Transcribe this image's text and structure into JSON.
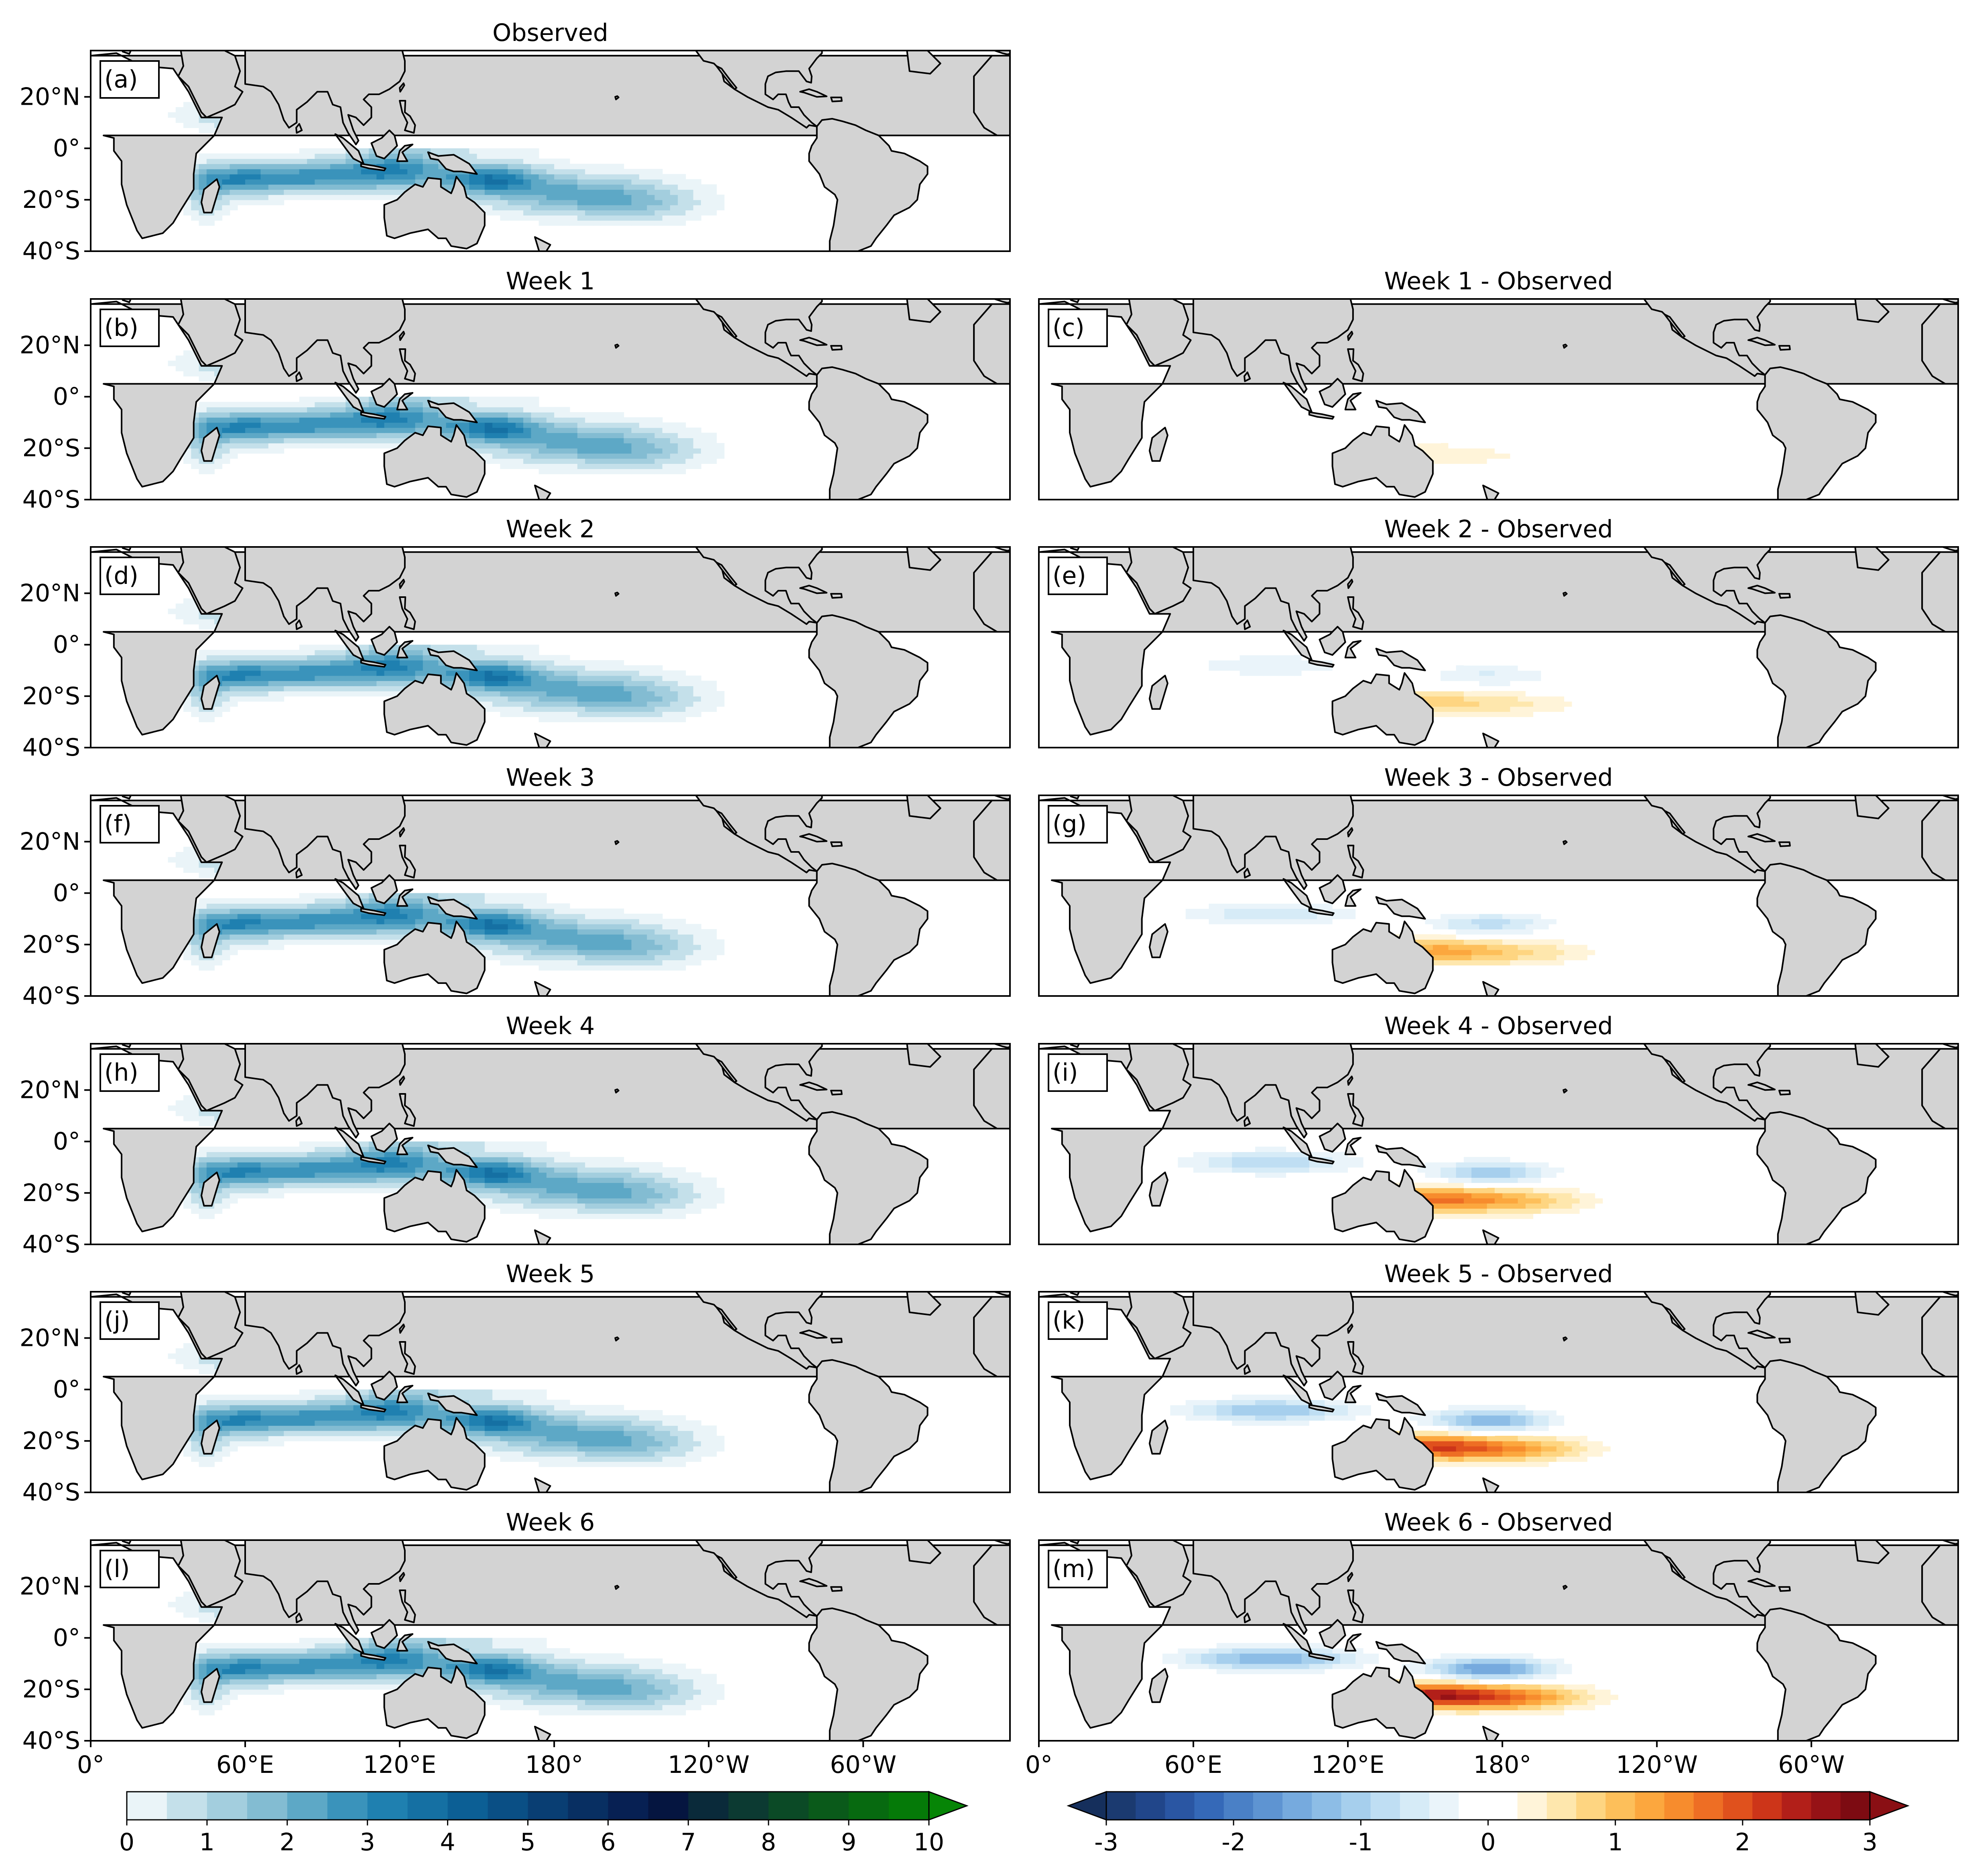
{
  "figure": {
    "colors": {
      "land": "#d3d3d3",
      "ocean": "#ffffff",
      "coast": "#000000"
    }
  },
  "chart_data": [
    {
      "type": "heatmap",
      "role": "climatology",
      "title": "Observed",
      "panel_label": "(a)",
      "lon_ticks": [
        "0°",
        "60°E",
        "120°E",
        "180°",
        "120°W",
        "60°W"
      ],
      "lat_ticks": [
        "20°N",
        "0°",
        "20°S",
        "40°S"
      ],
      "x_range": [
        0,
        357
      ],
      "ylim": [
        -40,
        38
      ],
      "show_x_ticks": false,
      "show_y_ticks": true
    },
    {
      "type": "heatmap",
      "role": "climatology",
      "title": "Week 1",
      "panel_label": "(b)",
      "lon_ticks": [
        "0°",
        "60°E",
        "120°E",
        "180°",
        "120°W",
        "60°W"
      ],
      "lat_ticks": [
        "20°N",
        "0°",
        "20°S",
        "40°S"
      ],
      "x_range": [
        0,
        357
      ],
      "ylim": [
        -40,
        38
      ],
      "show_x_ticks": false,
      "show_y_ticks": true
    },
    {
      "type": "heatmap",
      "role": "difference",
      "title": "Week 1 - Observed",
      "panel_label": "(c)",
      "lon_ticks": [
        "0°",
        "60°E",
        "120°E",
        "180°",
        "120°W",
        "60°W"
      ],
      "lat_ticks": [
        "20°N",
        "0°",
        "20°S",
        "40°S"
      ],
      "x_range": [
        0,
        357
      ],
      "ylim": [
        -40,
        38
      ],
      "show_x_ticks": false,
      "show_y_ticks": false
    },
    {
      "type": "heatmap",
      "role": "climatology",
      "title": "Week 2",
      "panel_label": "(d)",
      "lon_ticks": [
        "0°",
        "60°E",
        "120°E",
        "180°",
        "120°W",
        "60°W"
      ],
      "lat_ticks": [
        "20°N",
        "0°",
        "20°S",
        "40°S"
      ],
      "x_range": [
        0,
        357
      ],
      "ylim": [
        -40,
        38
      ],
      "show_x_ticks": false,
      "show_y_ticks": true
    },
    {
      "type": "heatmap",
      "role": "difference",
      "title": "Week 2 - Observed",
      "panel_label": "(e)",
      "lon_ticks": [
        "0°",
        "60°E",
        "120°E",
        "180°",
        "120°W",
        "60°W"
      ],
      "lat_ticks": [
        "20°N",
        "0°",
        "20°S",
        "40°S"
      ],
      "x_range": [
        0,
        357
      ],
      "ylim": [
        -40,
        38
      ],
      "show_x_ticks": false,
      "show_y_ticks": false
    },
    {
      "type": "heatmap",
      "role": "climatology",
      "title": "Week 3",
      "panel_label": "(f)",
      "lon_ticks": [
        "0°",
        "60°E",
        "120°E",
        "180°",
        "120°W",
        "60°W"
      ],
      "lat_ticks": [
        "20°N",
        "0°",
        "20°S",
        "40°S"
      ],
      "x_range": [
        0,
        357
      ],
      "ylim": [
        -40,
        38
      ],
      "show_x_ticks": false,
      "show_y_ticks": true
    },
    {
      "type": "heatmap",
      "role": "difference",
      "title": "Week 3 - Observed",
      "panel_label": "(g)",
      "lon_ticks": [
        "0°",
        "60°E",
        "120°E",
        "180°",
        "120°W",
        "60°W"
      ],
      "lat_ticks": [
        "20°N",
        "0°",
        "20°S",
        "40°S"
      ],
      "x_range": [
        0,
        357
      ],
      "ylim": [
        -40,
        38
      ],
      "show_x_ticks": false,
      "show_y_ticks": false
    },
    {
      "type": "heatmap",
      "role": "climatology",
      "title": "Week 4",
      "panel_label": "(h)",
      "lon_ticks": [
        "0°",
        "60°E",
        "120°E",
        "180°",
        "120°W",
        "60°W"
      ],
      "lat_ticks": [
        "20°N",
        "0°",
        "20°S",
        "40°S"
      ],
      "x_range": [
        0,
        357
      ],
      "ylim": [
        -40,
        38
      ],
      "show_x_ticks": false,
      "show_y_ticks": true
    },
    {
      "type": "heatmap",
      "role": "difference",
      "title": "Week 4 - Observed",
      "panel_label": "(i)",
      "lon_ticks": [
        "0°",
        "60°E",
        "120°E",
        "180°",
        "120°W",
        "60°W"
      ],
      "lat_ticks": [
        "20°N",
        "0°",
        "20°S",
        "40°S"
      ],
      "x_range": [
        0,
        357
      ],
      "ylim": [
        -40,
        38
      ],
      "show_x_ticks": false,
      "show_y_ticks": false
    },
    {
      "type": "heatmap",
      "role": "climatology",
      "title": "Week 5",
      "panel_label": "(j)",
      "lon_ticks": [
        "0°",
        "60°E",
        "120°E",
        "180°",
        "120°W",
        "60°W"
      ],
      "lat_ticks": [
        "20°N",
        "0°",
        "20°S",
        "40°S"
      ],
      "x_range": [
        0,
        357
      ],
      "ylim": [
        -40,
        38
      ],
      "show_x_ticks": false,
      "show_y_ticks": true
    },
    {
      "type": "heatmap",
      "role": "difference",
      "title": "Week 5 - Observed",
      "panel_label": "(k)",
      "lon_ticks": [
        "0°",
        "60°E",
        "120°E",
        "180°",
        "120°W",
        "60°W"
      ],
      "lat_ticks": [
        "20°N",
        "0°",
        "20°S",
        "40°S"
      ],
      "x_range": [
        0,
        357
      ],
      "ylim": [
        -40,
        38
      ],
      "show_x_ticks": false,
      "show_y_ticks": false
    },
    {
      "type": "heatmap",
      "role": "climatology",
      "title": "Week 6",
      "panel_label": "(l)",
      "lon_ticks": [
        "0°",
        "60°E",
        "120°E",
        "180°",
        "120°W",
        "60°W"
      ],
      "lat_ticks": [
        "20°N",
        "0°",
        "20°S",
        "40°S"
      ],
      "x_range": [
        0,
        357
      ],
      "ylim": [
        -40,
        38
      ],
      "show_x_ticks": true,
      "show_y_ticks": true
    },
    {
      "type": "heatmap",
      "role": "difference",
      "title": "Week 6 - Observed",
      "panel_label": "(m)",
      "lon_ticks": [
        "0°",
        "60°E",
        "120°E",
        "180°",
        "120°W",
        "60°W"
      ],
      "lat_ticks": [
        "20°N",
        "0°",
        "20°S",
        "40°S"
      ],
      "x_range": [
        0,
        357
      ],
      "ylim": [
        -40,
        38
      ],
      "show_x_ticks": true,
      "show_y_ticks": false
    }
  ],
  "colorbars": [
    {
      "name": "climatology",
      "range": [
        0,
        10
      ],
      "ticks": [
        "0",
        "1",
        "2",
        "3",
        "4",
        "5",
        "6",
        "7",
        "8",
        "9",
        "10"
      ],
      "extend": "max",
      "colors": [
        "#eaf4f8",
        "#c4e0ea",
        "#a3cede",
        "#83bcd2",
        "#5da8c6",
        "#3a93bb",
        "#1f80b0",
        "#1570a3",
        "#0c5f95",
        "#0a4f85",
        "#093e73",
        "#082f62",
        "#072053",
        "#051540",
        "#0a2a3a",
        "#0c3a32",
        "#0b4a26",
        "#0a5a1a",
        "#076a10",
        "#057a08"
      ],
      "over_color": "#068506"
    },
    {
      "name": "difference",
      "range": [
        -3,
        3
      ],
      "ticks": [
        "-3",
        "-2",
        "-1",
        "0",
        "1",
        "2",
        "3"
      ],
      "extend": "both",
      "colors": [
        "#1b3a70",
        "#21468a",
        "#2a56a3",
        "#3569b8",
        "#4a80c6",
        "#5e94d2",
        "#76aade",
        "#8dbde6",
        "#a6cfed",
        "#bfdef3",
        "#d6ebf7",
        "#eaf4fa",
        "#ffffff",
        "#ffffff",
        "#fff4d9",
        "#fee7ad",
        "#fed581",
        "#fdbf5a",
        "#fca73e",
        "#f78c2d",
        "#ee6e24",
        "#e0511d",
        "#cd3519",
        "#b21f19",
        "#961216",
        "#7d0b12"
      ],
      "under_color": "#152f5c",
      "over_color": "#8a0f14"
    }
  ]
}
